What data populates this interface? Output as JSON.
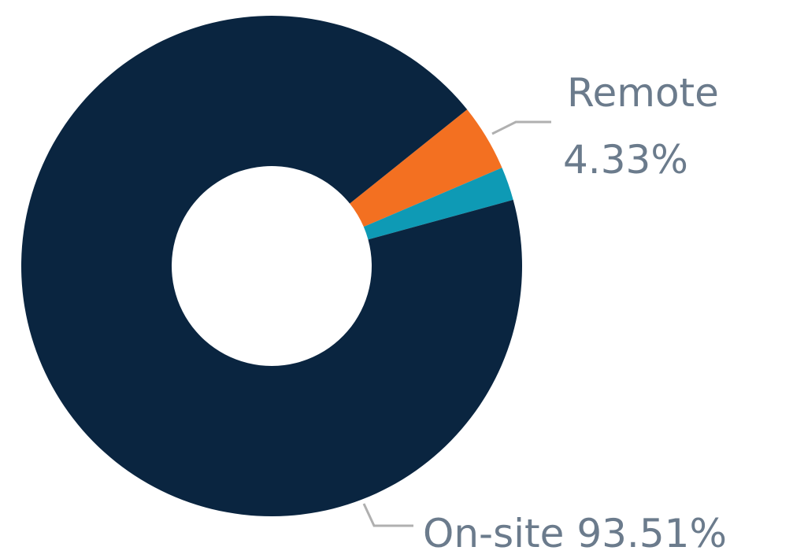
{
  "chart_data": {
    "type": "donut",
    "categories": [
      "Remote",
      null,
      "On-site"
    ],
    "values": [
      4.33,
      2.16,
      93.51
    ],
    "value_labels": [
      "4.33%",
      null,
      "93.51%"
    ],
    "colors": [
      "#f37021",
      "#0e9ab5",
      "#0a2540"
    ]
  }
}
